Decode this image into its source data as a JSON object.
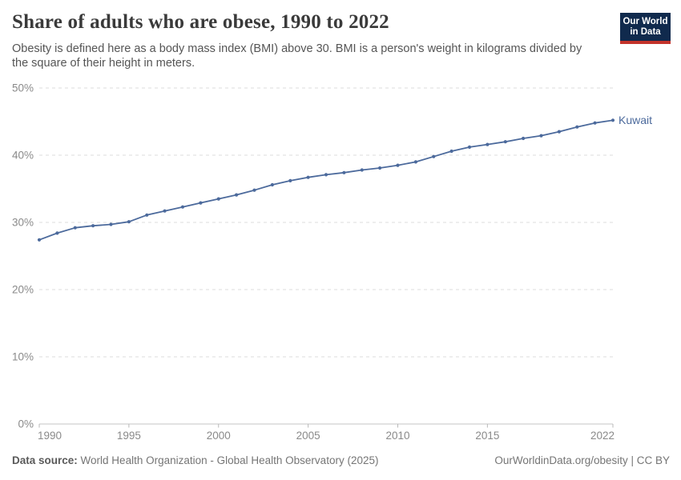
{
  "header": {
    "title": "Share of adults who are obese, 1990 to 2022",
    "subtitle": "Obesity is defined here as a body mass index (BMI) above 30. BMI is a person's weight in kilograms divided by the square of their height in meters.",
    "logo": {
      "line1": "Our World",
      "line2": "in Data"
    }
  },
  "footer": {
    "source_label": "Data source:",
    "source_value": "World Health Organization - Global Health Observatory (2025)",
    "attribution": "OurWorldinData.org/obesity | CC BY"
  },
  "colors": {
    "series_blue": "#4C6A9C",
    "logo_navy": "#102A4D",
    "logo_red": "#C3332B",
    "grid": "#DEDEDE",
    "axis_line": "#C6C6C6",
    "tick_mark": "#B8B8B8",
    "axis_text": "#8A8A8A"
  },
  "chart_data": {
    "type": "line",
    "title": "Share of adults who are obese, 1990 to 2022",
    "xlabel": "",
    "ylabel": "",
    "units": "%",
    "xlim": [
      1990,
      2022
    ],
    "ylim": [
      0,
      50
    ],
    "x_ticks": [
      1990,
      1995,
      2000,
      2005,
      2010,
      2015,
      2022
    ],
    "y_ticks": [
      0,
      10,
      20,
      30,
      40,
      50
    ],
    "y_tick_labels": [
      "0%",
      "10%",
      "20%",
      "30%",
      "40%",
      "50%"
    ],
    "grid": "horizontal-dashed",
    "legend": "label-at-line-end",
    "x": [
      1990,
      1991,
      1992,
      1993,
      1994,
      1995,
      1996,
      1997,
      1998,
      1999,
      2000,
      2001,
      2002,
      2003,
      2004,
      2005,
      2006,
      2007,
      2008,
      2009,
      2010,
      2011,
      2012,
      2013,
      2014,
      2015,
      2016,
      2017,
      2018,
      2019,
      2020,
      2021,
      2022
    ],
    "series": [
      {
        "name": "Kuwait",
        "values": [
          27.4,
          28.4,
          29.2,
          29.5,
          29.7,
          30.1,
          31.1,
          31.7,
          32.3,
          32.9,
          33.5,
          34.1,
          34.8,
          35.6,
          36.2,
          36.7,
          37.1,
          37.4,
          37.8,
          38.1,
          38.5,
          39.0,
          39.8,
          40.6,
          41.2,
          41.6,
          42.0,
          42.5,
          42.9,
          43.5,
          44.2,
          44.8,
          45.2
        ]
      }
    ]
  }
}
